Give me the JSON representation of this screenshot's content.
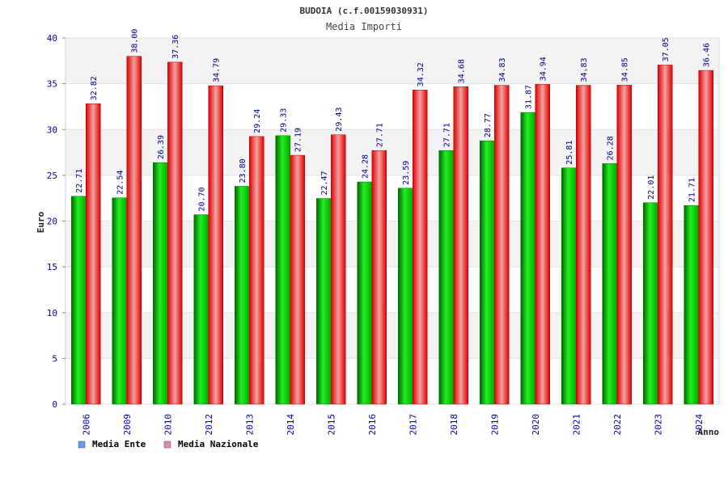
{
  "chart_data": {
    "type": "bar",
    "title": "BUDOIA (c.f.00159030931)",
    "subtitle": "Media Importi",
    "xlabel": "Anno",
    "ylabel": "Euro",
    "ylim": [
      0,
      40
    ],
    "yticks": [
      "0",
      "5",
      "10",
      "15",
      "20",
      "25",
      "30",
      "35",
      "40"
    ],
    "categories": [
      "2006",
      "2009",
      "2010",
      "2012",
      "2013",
      "2014",
      "2015",
      "2016",
      "2017",
      "2018",
      "2019",
      "2020",
      "2021",
      "2022",
      "2023",
      "2024"
    ],
    "series": [
      {
        "name": "Media Ente",
        "color": "#00cc00",
        "legend_color": "#6699ee",
        "values": [
          22.71,
          22.54,
          26.39,
          20.7,
          23.8,
          29.33,
          22.47,
          24.28,
          23.59,
          27.71,
          28.77,
          31.87,
          25.81,
          26.28,
          22.01,
          21.71
        ],
        "labels": [
          "22.71",
          "22.54",
          "26.39",
          "20.70",
          "23.80",
          "29.33",
          "22.47",
          "24.28",
          "23.59",
          "27.71",
          "28.77",
          "31.87",
          "25.81",
          "26.28",
          "22.01",
          "21.71"
        ]
      },
      {
        "name": "Media Nazionale",
        "color": "#ee1111",
        "legend_color": "#dd88bb",
        "values": [
          32.82,
          38.0,
          37.36,
          34.79,
          29.24,
          27.19,
          29.43,
          27.71,
          34.32,
          34.68,
          34.83,
          34.94,
          34.83,
          34.85,
          37.05,
          36.46
        ],
        "labels": [
          "32.82",
          "38.00",
          "37.36",
          "34.79",
          "29.24",
          "27.19",
          "29.43",
          "27.71",
          "34.32",
          "34.68",
          "34.83",
          "34.94",
          "34.83",
          "34.85",
          "37.05",
          "36.46"
        ]
      }
    ],
    "grid": true,
    "legend": "bottom-left"
  }
}
